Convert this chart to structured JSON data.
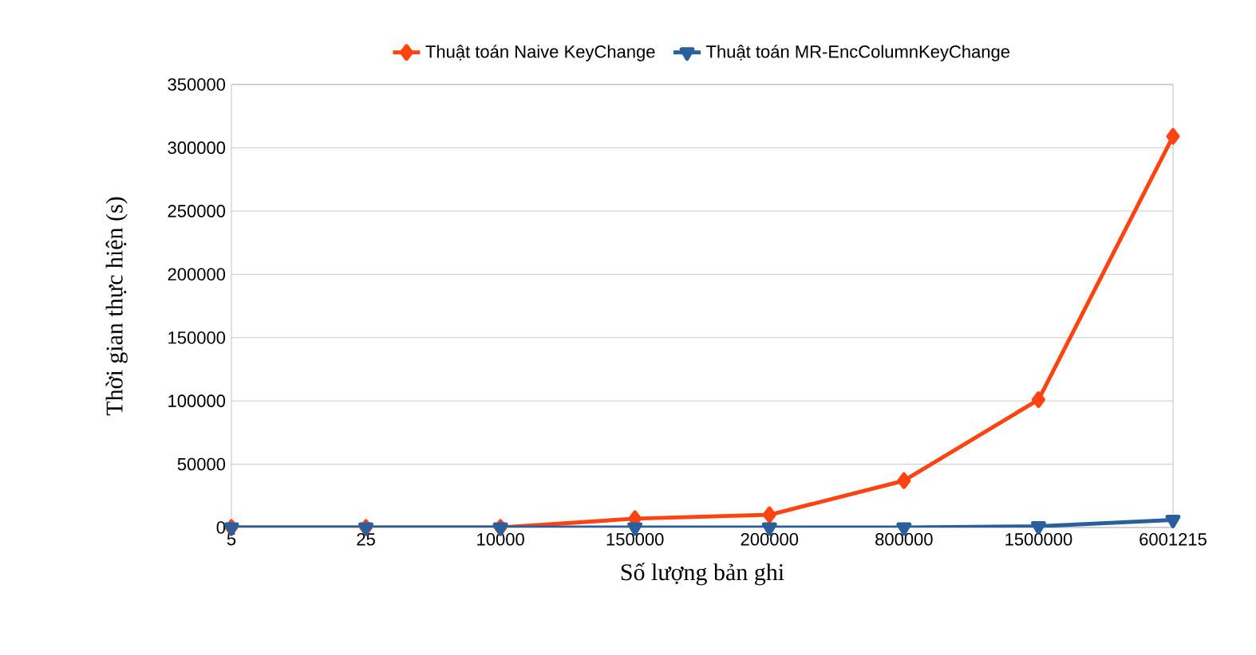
{
  "chart_data": {
    "type": "line",
    "xlabel": "Số lượng bản ghi",
    "ylabel": "Thời gian thực hiện (s)",
    "categories": [
      "5",
      "25",
      "10000",
      "150000",
      "200000",
      "800000",
      "1500000",
      "6001215"
    ],
    "series": [
      {
        "name": "Thuật toán Naive KeyChange",
        "color": "#ff4411",
        "marker": "diamond",
        "values": [
          0,
          0,
          0,
          7000,
          10000,
          37000,
          101000,
          309000
        ]
      },
      {
        "name": "Thuật toán MR-EncColumnKeyChange",
        "color": "#2a5f9e",
        "marker": "triangle",
        "values": [
          0,
          0,
          0,
          0,
          0,
          0,
          1000,
          6000
        ]
      }
    ],
    "ylim": [
      0,
      350000
    ],
    "yticks": [
      0,
      50000,
      100000,
      150000,
      200000,
      250000,
      300000,
      350000
    ],
    "grid": "y",
    "legend": "top",
    "line_style": "solid"
  }
}
